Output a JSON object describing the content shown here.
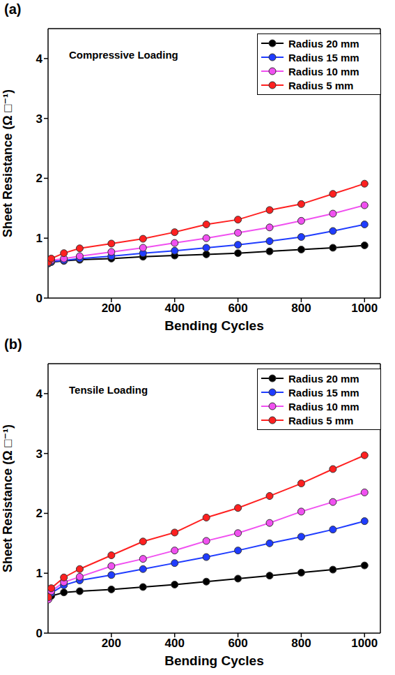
{
  "chart_data": [
    {
      "type": "line",
      "panel_label": "(a)",
      "x_label": "Bending Cycles",
      "y_label": "Sheet Resistance (Ω □⁻¹)",
      "annotations": [
        {
          "text": "Compressive Loading"
        }
      ],
      "x": [
        1,
        10,
        50,
        100,
        200,
        300,
        400,
        500,
        600,
        700,
        800,
        900,
        1000
      ],
      "xlim": [
        0,
        1050
      ],
      "xticks": [
        200,
        400,
        600,
        800,
        1000
      ],
      "ylim": [
        0,
        4.5
      ],
      "yticks": [
        0,
        1,
        2,
        3,
        4
      ],
      "grid": false,
      "legend": "upper right",
      "marker": "circle",
      "series": [
        {
          "name": "Radius 20 mm",
          "color": "#000000",
          "values": [
            0.58,
            0.6,
            0.62,
            0.64,
            0.66,
            0.69,
            0.71,
            0.73,
            0.75,
            0.78,
            0.81,
            0.84,
            0.88
          ]
        },
        {
          "name": "Radius 15 mm",
          "color": "#1f3cff",
          "values": [
            0.58,
            0.61,
            0.63,
            0.66,
            0.7,
            0.75,
            0.79,
            0.84,
            0.89,
            0.95,
            1.02,
            1.12,
            1.23
          ]
        },
        {
          "name": "Radius 10 mm",
          "color": "#f050f0",
          "values": [
            0.59,
            0.63,
            0.66,
            0.7,
            0.77,
            0.84,
            0.92,
            1.0,
            1.09,
            1.18,
            1.29,
            1.41,
            1.55
          ]
        },
        {
          "name": "Radius 5 mm",
          "color": "#ff2020",
          "values": [
            0.6,
            0.66,
            0.75,
            0.83,
            0.91,
            0.99,
            1.1,
            1.23,
            1.31,
            1.47,
            1.57,
            1.74,
            1.91
          ]
        }
      ]
    },
    {
      "type": "line",
      "panel_label": "(b)",
      "x_label": "Bending Cycles",
      "y_label": "Sheet Resistance (Ω □⁻¹)",
      "annotations": [
        {
          "text": "Tensile Loading"
        }
      ],
      "x": [
        1,
        10,
        50,
        100,
        200,
        300,
        400,
        500,
        600,
        700,
        800,
        900,
        1000
      ],
      "xlim": [
        0,
        1050
      ],
      "xticks": [
        200,
        400,
        600,
        800,
        1000
      ],
      "ylim": [
        0,
        4.5
      ],
      "yticks": [
        0,
        1,
        2,
        3,
        4
      ],
      "grid": false,
      "legend": "upper right",
      "marker": "circle",
      "series": [
        {
          "name": "Radius 20 mm",
          "color": "#000000",
          "values": [
            0.58,
            0.62,
            0.68,
            0.7,
            0.73,
            0.77,
            0.81,
            0.86,
            0.91,
            0.96,
            1.01,
            1.06,
            1.13
          ]
        },
        {
          "name": "Radius 15 mm",
          "color": "#1f3cff",
          "values": [
            0.57,
            0.67,
            0.8,
            0.88,
            0.97,
            1.07,
            1.17,
            1.27,
            1.38,
            1.5,
            1.61,
            1.73,
            1.87
          ]
        },
        {
          "name": "Radius 10 mm",
          "color": "#f050f0",
          "values": [
            0.56,
            0.7,
            0.85,
            0.94,
            1.12,
            1.24,
            1.38,
            1.54,
            1.67,
            1.84,
            2.03,
            2.19,
            2.35
          ]
        },
        {
          "name": "Radius 5 mm",
          "color": "#ff2020",
          "values": [
            0.6,
            0.75,
            0.93,
            1.07,
            1.3,
            1.53,
            1.68,
            1.93,
            2.09,
            2.29,
            2.5,
            2.74,
            2.97
          ]
        }
      ]
    }
  ]
}
